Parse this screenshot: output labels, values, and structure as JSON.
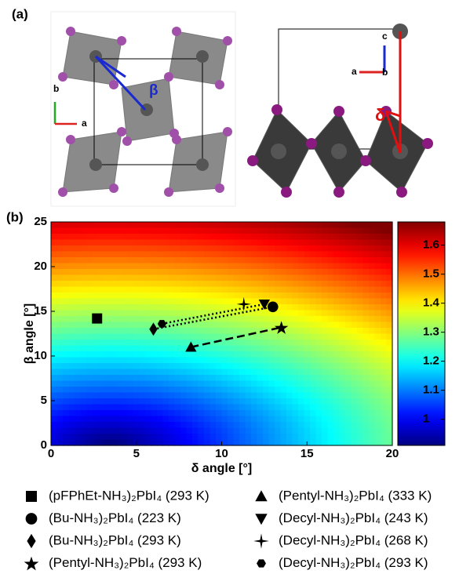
{
  "panel_labels": [
    "(a)",
    "(b)"
  ],
  "structure_labels": {
    "beta": "β",
    "delta": "δ",
    "axis_a_left": "a",
    "axis_b_left": "b",
    "axis_a_right": "a",
    "axis_b_right": "b",
    "axis_c_right": "c"
  },
  "chart_data": {
    "type": "scatter",
    "xlabel": "δ angle [°]",
    "ylabel": "β angle [°]",
    "xlim": [
      0,
      20
    ],
    "xticks": [
      0,
      5,
      10,
      15,
      20
    ],
    "ylim": [
      0,
      25
    ],
    "yticks": [
      0,
      5,
      10,
      15,
      20,
      25
    ],
    "clim": [
      0.91,
      1.68
    ],
    "cticks": [
      1,
      1.1,
      1.2,
      1.3,
      1.4,
      1.5,
      1.6
    ],
    "colormap": "jet",
    "marker_color": "#000000",
    "series": [
      {
        "name": "(pFPhEt-NH₃)₂PbI₄ (293 K)",
        "marker": "square",
        "x": [
          2.7
        ],
        "values": [
          14.2
        ]
      },
      {
        "name": "(Bu-NH₃)₂PbI₄ (223 K)",
        "marker": "circle",
        "x": [
          13.0
        ],
        "values": [
          15.5
        ]
      },
      {
        "name": "(Bu-NH₃)₂PbI₄ (293 K)",
        "marker": "diamond",
        "x": [
          6.0
        ],
        "values": [
          13.0
        ]
      },
      {
        "name": "(Pentyl-NH₃)₂PbI₄ (293 K)",
        "marker": "star",
        "x": [
          13.5
        ],
        "values": [
          13.2
        ]
      },
      {
        "name": "(Pentyl-NH₃)₂PbI₄ (333 K)",
        "marker": "triangle-up",
        "x": [
          8.2
        ],
        "values": [
          11.0
        ]
      },
      {
        "name": "(Decyl-NH₃)₂PbI₄ (243 K)",
        "marker": "triangle-down",
        "x": [
          12.5
        ],
        "values": [
          15.8
        ]
      },
      {
        "name": "(Decyl-NH₃)₂PbI₄ (268 K)",
        "marker": "star4",
        "x": [
          11.3
        ],
        "values": [
          15.8
        ]
      },
      {
        "name": "(Decyl-NH₃)₂PbI₄ (293 K)",
        "marker": "hexagon",
        "x": [
          6.5
        ],
        "values": [
          13.6
        ]
      }
    ]
  }
}
